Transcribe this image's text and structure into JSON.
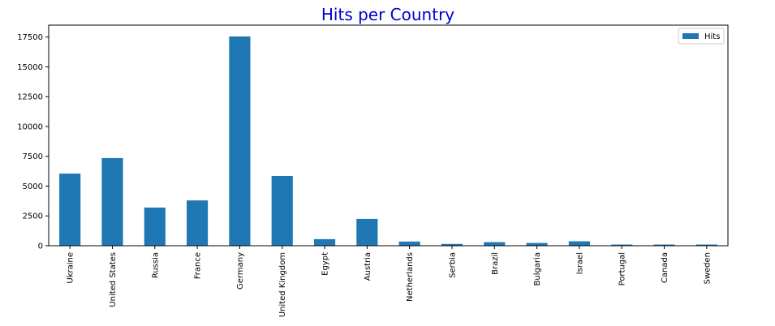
{
  "chart_data": {
    "type": "bar",
    "title": "Hits per Country",
    "title_color": "#0000cd",
    "xlabel": "",
    "ylabel": "",
    "categories": [
      "Ukraine",
      "United States",
      "Russia",
      "France",
      "Germany",
      "United Kingdom",
      "Egypt",
      "Austria",
      "Netherlands",
      "Serbia",
      "Brazil",
      "Bulgaria",
      "Israel",
      "Portugal",
      "Canada",
      "Sweden"
    ],
    "series": [
      {
        "name": "Hits",
        "color": "#1f77b4",
        "values": [
          6050,
          7350,
          3200,
          3800,
          17550,
          5850,
          550,
          2250,
          350,
          150,
          300,
          230,
          370,
          100,
          100,
          100
        ]
      }
    ],
    "ylim": [
      0,
      18500
    ],
    "yticks": [
      0,
      2500,
      5000,
      7500,
      10000,
      12500,
      15000,
      17500
    ],
    "grid": false,
    "legend_position": "top-right"
  }
}
